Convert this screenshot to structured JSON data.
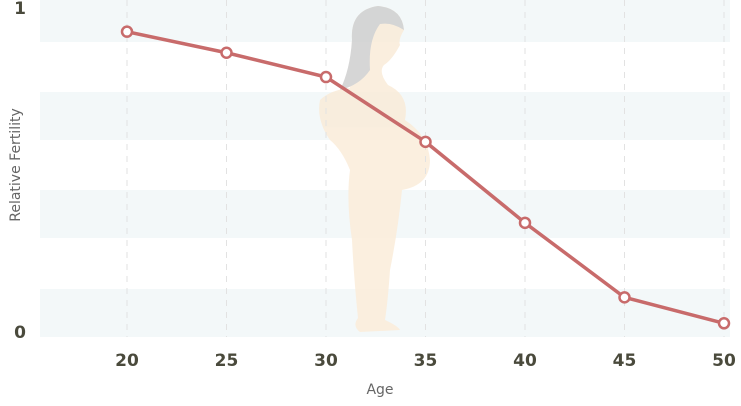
{
  "chart_data": {
    "type": "line",
    "x_label": "Age",
    "y_label": "Relative Fertility",
    "x": [
      20,
      25,
      30,
      35,
      40,
      45,
      50
    ],
    "series": [
      {
        "name": "Relative fertility",
        "color": "#c86b6b",
        "values": [
          0.93,
          0.865,
          0.79,
          0.59,
          0.34,
          0.11,
          0.03
        ]
      }
    ],
    "xlim": [
      16,
      50
    ],
    "xticks": [
      20,
      25,
      30,
      35,
      40,
      45,
      50
    ],
    "ylim": [
      0,
      1
    ],
    "yticks": [
      0,
      1
    ],
    "grid": true
  }
}
